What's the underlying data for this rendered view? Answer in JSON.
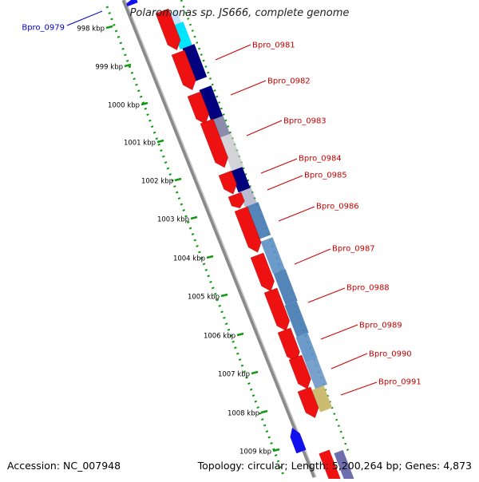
{
  "title": "Polaromonas sp. JS666, complete genome",
  "footer": {
    "accession": "Accession: NC_007948",
    "summary": "Topology: circular; Length: 5,200,264 bp; Genes: 4,873"
  },
  "ruler_ticks": [
    "998 kbp",
    "999 kbp",
    "1000 kbp",
    "1001 kbp",
    "1002 kbp",
    "1003 kbp",
    "1004 kbp",
    "1005 kbp",
    "1006 kbp",
    "1007 kbp",
    "1008 kbp",
    "1009 kbp"
  ],
  "gene_labels": [
    {
      "name": "Bpro_0979",
      "color": "#0000cc"
    },
    {
      "name": "Bpro_0981",
      "color": "#cc0000"
    },
    {
      "name": "Bpro_0982",
      "color": "#cc0000"
    },
    {
      "name": "Bpro_0983",
      "color": "#cc0000"
    },
    {
      "name": "Bpro_0984",
      "color": "#cc0000"
    },
    {
      "name": "Bpro_0985",
      "color": "#cc0000"
    },
    {
      "name": "Bpro_0986",
      "color": "#cc0000"
    },
    {
      "name": "Bpro_0987",
      "color": "#cc0000"
    },
    {
      "name": "Bpro_0988",
      "color": "#cc0000"
    },
    {
      "name": "Bpro_0989",
      "color": "#cc0000"
    },
    {
      "name": "Bpro_0990",
      "color": "#cc0000"
    },
    {
      "name": "Bpro_0991",
      "color": "#cc0000"
    }
  ],
  "colors": {
    "forward_gene": "#ee1111",
    "reverse_gene": "#1111ee",
    "backbone": "#8a8a8a",
    "ruler": "#119911",
    "label_forward": "#cc0000",
    "label_reverse": "#0000cc"
  }
}
